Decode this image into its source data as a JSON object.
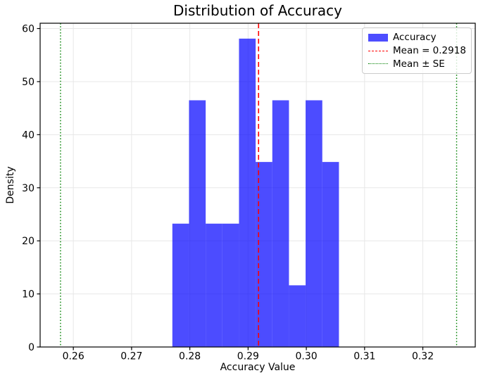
{
  "chart_data": {
    "type": "bar",
    "subtype": "histogram",
    "title": "Distribution of Accuracy",
    "xlabel": "Accuracy Value",
    "ylabel": "Density",
    "xlim": [
      0.2543,
      0.329
    ],
    "ylim": [
      0,
      61
    ],
    "grid": true,
    "xticks": {
      "values": [
        0.26,
        0.27,
        0.28,
        0.29,
        0.3,
        0.31,
        0.32
      ],
      "labels": [
        "0.26",
        "0.27",
        "0.28",
        "0.29",
        "0.30",
        "0.31",
        "0.32"
      ]
    },
    "yticks": {
      "values": [
        0,
        10,
        20,
        30,
        40,
        50,
        60
      ],
      "labels": [
        "0",
        "10",
        "20",
        "30",
        "40",
        "50",
        "60"
      ]
    },
    "bins": {
      "start": 0.277,
      "width": 0.00286,
      "heights": [
        23.24,
        46.48,
        23.24,
        23.24,
        58.1,
        34.86,
        46.48,
        11.62,
        46.48,
        34.86
      ]
    },
    "mean_line": {
      "value": 0.2918,
      "style": "dashed",
      "color": "#ff0000"
    },
    "se_lines": {
      "values": [
        0.2578,
        0.3258
      ],
      "style": "dotted",
      "color": "#008000"
    },
    "legend": {
      "position": "upper right",
      "items": [
        {
          "label": "Accuracy",
          "swatch": "patch",
          "color": "#4d4dff"
        },
        {
          "label": "Mean = 0.2918",
          "swatch": "dashed-line",
          "color": "#ff0000"
        },
        {
          "label": "Mean ± SE",
          "swatch": "dotted-line",
          "color": "#008000"
        }
      ]
    },
    "colors": {
      "bar": "#0000ff",
      "bar_opacity": 0.7,
      "grid": "#e7e7e7",
      "axis": "#000000",
      "background": "#ffffff"
    }
  }
}
